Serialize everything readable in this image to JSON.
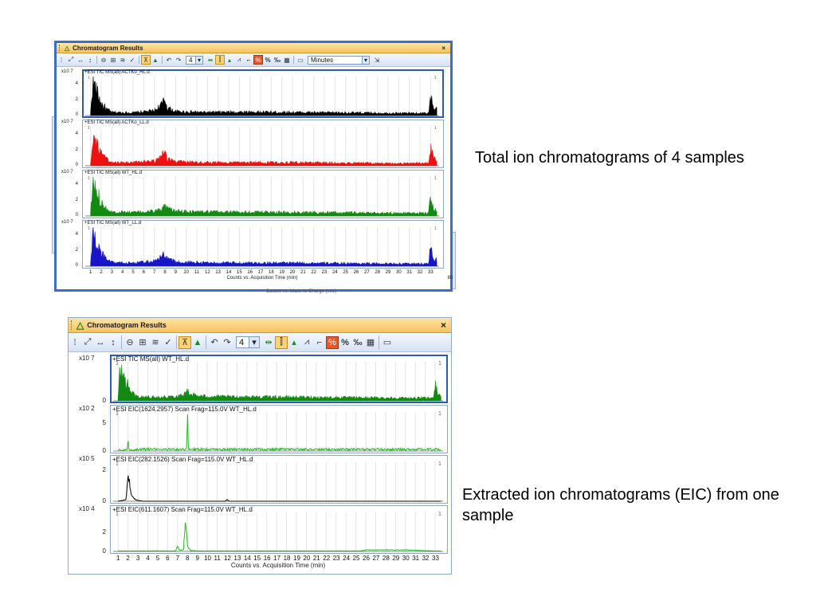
{
  "captions": {
    "top": "Total ion chromatograms of 4 samples",
    "bottom": "Extracted ion chromatograms (EIC) from one sample"
  },
  "windows": [
    {
      "title": "Chromatogram Results",
      "close_glyph": "×",
      "toolbar": {
        "zoom_value": "4",
        "units_value": "Minutes",
        "percent1": "%",
        "percent2": "‰"
      },
      "x_axis_title": "Counts vs. Acquisition Time (min)",
      "x_ticks": [
        "1",
        "2",
        "3",
        "4",
        "5",
        "6",
        "7",
        "8",
        "9",
        "10",
        "11",
        "12",
        "13",
        "14",
        "15",
        "16",
        "17",
        "18",
        "19",
        "20",
        "21",
        "22",
        "23",
        "24",
        "25",
        "26",
        "27",
        "28",
        "29",
        "30",
        "31",
        "32",
        "33"
      ],
      "behind_text": "Counts vs. Mass-to-Charge (m/z)",
      "behind_num": "80",
      "panels": [
        {
          "label": "+ESI TIC MS(all) ACTKo_HL.d",
          "scale": "x10 7",
          "yticks": [
            "4",
            "2",
            "0"
          ],
          "peak_marks": [
            "1",
            "1"
          ],
          "color": "#000000",
          "type": "tic",
          "ymax": 5
        },
        {
          "label": "+ESI TIC MS(all) ACTKo_LL.d",
          "scale": "x10 7",
          "yticks": [
            "4",
            "2",
            "0"
          ],
          "peak_marks": [
            "1",
            "1"
          ],
          "color": "#ee1111",
          "type": "tic",
          "ymax": 5
        },
        {
          "label": "+ESI TIC MS(all) WT_HL.d",
          "scale": "x10 7",
          "yticks": [
            "4",
            "2",
            "0"
          ],
          "peak_marks": [
            "1",
            "1"
          ],
          "color": "#128a12",
          "type": "tic",
          "ymax": 5
        },
        {
          "label": "+ESI TIC MS(all) WT_LL.d",
          "scale": "x10 7",
          "yticks": [
            "4",
            "2",
            "0"
          ],
          "peak_marks": [
            "1",
            "1"
          ],
          "color": "#1616c8",
          "type": "tic",
          "ymax": 5
        }
      ]
    },
    {
      "title": "Chromatogram Results",
      "close_glyph": "×",
      "toolbar": {
        "zoom_value": "4",
        "units_value": "",
        "percent1": "%",
        "percent2": "‰"
      },
      "x_axis_title": "Counts vs. Acquisition Time (min)",
      "x_ticks": [
        "1",
        "2",
        "3",
        "4",
        "5",
        "6",
        "7",
        "8",
        "9",
        "10",
        "11",
        "12",
        "13",
        "14",
        "15",
        "16",
        "17",
        "18",
        "19",
        "20",
        "21",
        "22",
        "23",
        "24",
        "25",
        "26",
        "27",
        "28",
        "29",
        "30",
        "31",
        "32",
        "33"
      ],
      "behind_text": "",
      "behind_num": "",
      "panels": [
        {
          "label": "+ESI TIC MS(all) WT_HL.d",
          "scale": "x10 7",
          "yticks": [
            "0"
          ],
          "peak_marks": [
            "1",
            "1"
          ],
          "color": "#128a12",
          "type": "tic",
          "ymax": 5
        },
        {
          "label": "+ESI EIC(1624.2957) Scan Frag=115.0V WT_HL.d",
          "scale": "x10 2",
          "yticks": [
            "5",
            "0"
          ],
          "peak_marks": [
            "1",
            "1"
          ],
          "color": "#22bb22",
          "type": "eic1",
          "ymax": 7
        },
        {
          "label": "+ESI EIC(282.1526) Scan Frag=115.0V WT_HL.d",
          "scale": "x10 5",
          "yticks": [
            "2",
            "0"
          ],
          "peak_marks": [
            "1",
            "1"
          ],
          "color": "#000000",
          "type": "eic2",
          "ymax": 2.5
        },
        {
          "label": "+ESI EIC(611.1607) Scan Frag=115.0V WT_HL.d",
          "scale": "x10 4",
          "yticks": [
            "2",
            "0"
          ],
          "peak_marks": [
            "1",
            "1"
          ],
          "color": "#22bb22",
          "type": "eic3",
          "ymax": 4
        }
      ]
    }
  ],
  "chart_data": [
    {
      "type": "area",
      "title": "",
      "xlabel": "Counts vs. Acquisition Time (min)",
      "x_range": [
        0.5,
        33.8
      ],
      "series": [
        {
          "name": "+ESI TIC MS(all) ACTKo_HL.d",
          "y_scale": "x10 7",
          "x": [
            1.0,
            1.2,
            1.5,
            2.0,
            2.5,
            3.0,
            5.0,
            7.0,
            7.8,
            8.0,
            8.2,
            9.0,
            12.0,
            15.0,
            20.0,
            25.0,
            30.0,
            32.8,
            33.0,
            33.3
          ],
          "values": [
            0.3,
            4.5,
            3.2,
            1.5,
            0.8,
            0.4,
            0.35,
            0.6,
            1.5,
            2.2,
            1.0,
            0.5,
            0.4,
            0.45,
            0.4,
            0.35,
            0.3,
            0.3,
            2.5,
            0.8
          ]
        },
        {
          "name": "+ESI TIC MS(all) ACTKo_LL.d",
          "y_scale": "x10 7",
          "x": [
            1.0,
            1.2,
            1.5,
            2.0,
            2.5,
            3.0,
            5.0,
            7.0,
            7.8,
            8.0,
            8.2,
            9.0,
            12.0,
            15.0,
            20.0,
            25.0,
            30.0,
            32.8,
            33.0,
            33.3
          ],
          "values": [
            0.3,
            4.0,
            3.0,
            1.5,
            0.8,
            0.4,
            0.4,
            0.6,
            1.4,
            2.0,
            1.0,
            0.5,
            0.4,
            0.4,
            0.4,
            0.35,
            0.3,
            0.3,
            2.3,
            0.8
          ]
        },
        {
          "name": "+ESI TIC MS(all) WT_HL.d",
          "y_scale": "x10 7",
          "x": [
            1.0,
            1.2,
            1.5,
            2.0,
            2.5,
            3.0,
            5.0,
            7.0,
            7.8,
            8.0,
            8.2,
            9.0,
            12.0,
            15.0,
            20.0,
            25.0,
            30.0,
            32.8,
            33.0,
            33.3
          ],
          "values": [
            0.3,
            4.0,
            3.2,
            1.8,
            0.9,
            0.5,
            0.45,
            0.6,
            0.9,
            1.2,
            0.9,
            0.6,
            0.5,
            0.5,
            0.45,
            0.4,
            0.35,
            0.35,
            2.3,
            0.8
          ]
        },
        {
          "name": "+ESI TIC MS(all) WT_LL.d",
          "y_scale": "x10 7",
          "x": [
            1.0,
            1.2,
            1.5,
            2.0,
            2.5,
            3.0,
            5.0,
            7.0,
            7.8,
            8.0,
            8.2,
            9.0,
            12.0,
            15.0,
            20.0,
            25.0,
            30.0,
            32.8,
            33.0,
            33.3
          ],
          "values": [
            0.3,
            4.2,
            3.0,
            1.6,
            0.8,
            0.45,
            0.4,
            0.6,
            1.2,
            1.6,
            0.9,
            0.5,
            0.45,
            0.4,
            0.4,
            0.35,
            0.3,
            0.3,
            2.3,
            0.8
          ]
        }
      ]
    },
    {
      "type": "line",
      "title": "",
      "xlabel": "Counts vs. Acquisition Time (min)",
      "x_range": [
        0.5,
        33.8
      ],
      "series": [
        {
          "name": "+ESI TIC MS(all) WT_HL.d",
          "y_scale": "x10 7",
          "x": [
            1.0,
            1.2,
            1.5,
            2.0,
            2.5,
            3.0,
            5.0,
            7.0,
            7.8,
            8.0,
            8.2,
            9.0,
            12.0,
            15.0,
            20.0,
            25.0,
            30.0,
            32.8,
            33.0,
            33.3
          ],
          "values": [
            0.3,
            4.0,
            3.2,
            1.8,
            0.9,
            0.5,
            0.45,
            0.6,
            0.9,
            1.2,
            0.9,
            0.6,
            0.5,
            0.5,
            0.45,
            0.4,
            0.35,
            0.35,
            2.3,
            0.8
          ]
        },
        {
          "name": "+ESI EIC(1624.2957) Scan Frag=115.0V WT_HL.d",
          "y_scale": "x10 2",
          "x": [
            1.0,
            1.9,
            2.0,
            2.1,
            3.0,
            7.0,
            7.9,
            8.0,
            8.1,
            9.0,
            15.0,
            25.0,
            33.0
          ],
          "values": [
            0.2,
            0.2,
            1.3,
            0.2,
            0.3,
            0.3,
            0.3,
            6.2,
            0.3,
            0.3,
            0.3,
            0.3,
            0.3
          ]
        },
        {
          "name": "+ESI EIC(282.1526) Scan Frag=115.0V WT_HL.d",
          "y_scale": "x10 5",
          "x": [
            1.0,
            1.8,
            2.0,
            2.3,
            2.8,
            3.5,
            11.8,
            12.0,
            12.2,
            33.0
          ],
          "values": [
            0.0,
            0.1,
            1.9,
            0.4,
            0.08,
            0.0,
            0.0,
            0.1,
            0.0,
            0.0
          ]
        },
        {
          "name": "+ESI EIC(611.1607) Scan Frag=115.0V WT_HL.d",
          "y_scale": "x10 4",
          "x": [
            1.0,
            6.8,
            7.0,
            7.2,
            7.6,
            7.8,
            8.0,
            8.3,
            9.0,
            25.5,
            26.0,
            30.0,
            33.0
          ],
          "values": [
            0.05,
            0.05,
            0.6,
            0.1,
            0.2,
            3.2,
            0.6,
            0.1,
            0.05,
            0.05,
            0.15,
            0.15,
            0.05
          ]
        }
      ]
    }
  ]
}
